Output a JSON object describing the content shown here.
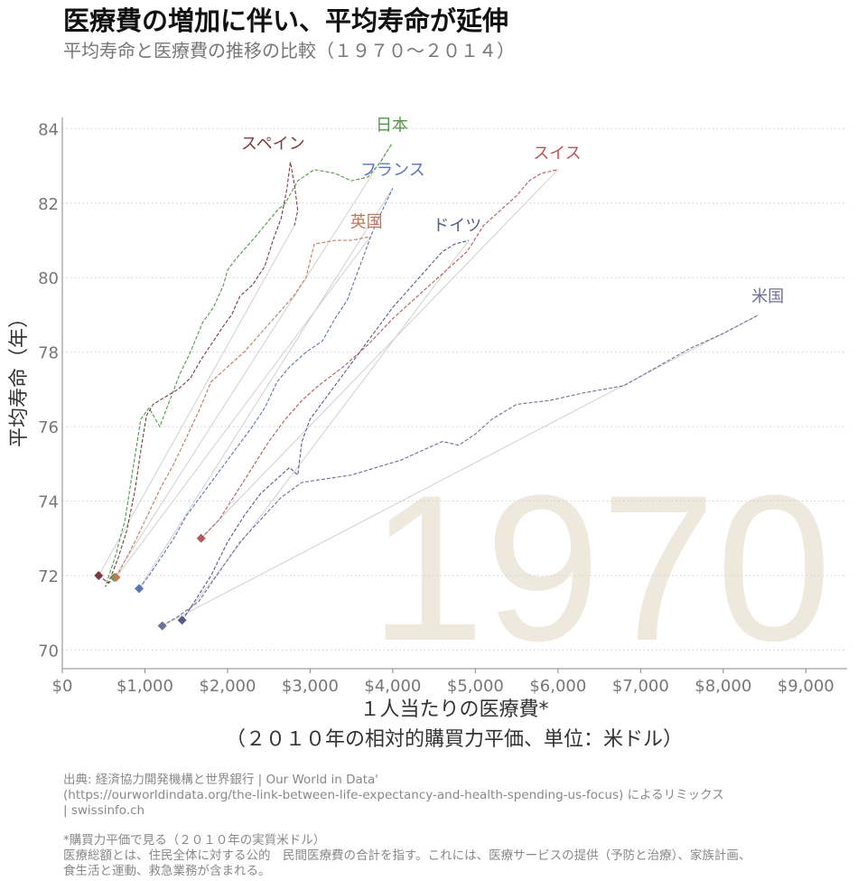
{
  "header": {
    "title": "医療費の増加に伴い、平均寿命が延伸",
    "subtitle": "平均寿命と医療費の推移の比較（１９７０～２０１４）"
  },
  "colors": {
    "grid": "#cfcfcf",
    "axis": "#888888",
    "year_watermark": "#efe8dd",
    "trend_line": "#d0d0d0"
  },
  "chart_data": {
    "type": "line",
    "year_label": "1970",
    "xlabel": "１人当たりの医療費*",
    "xlabel_line2": "（２０１０年の相対的購買力平価、単位：米ドル）",
    "ylabel": "平均寿命（年）",
    "xlim": [
      0,
      9500
    ],
    "ylim": [
      69.5,
      84.3
    ],
    "x_ticks": [
      0,
      1000,
      2000,
      3000,
      4000,
      5000,
      6000,
      7000,
      8000,
      9000
    ],
    "x_tick_labels": [
      "$0",
      "$1,000",
      "$2,000",
      "$3,000",
      "$4,000",
      "$5,000",
      "$6,000",
      "$7,000",
      "$8,000",
      "$9,000"
    ],
    "y_ticks": [
      70,
      72,
      74,
      76,
      78,
      80,
      82,
      84
    ],
    "y_tick_labels": [
      "70",
      "72",
      "74",
      "76",
      "78",
      "80",
      "82",
      "84"
    ],
    "grid": "horizontal dotted",
    "series": [
      {
        "name": "日本",
        "color": "#4f9a45",
        "start": [
          630,
          71.95
        ],
        "end": [
          3990,
          83.6
        ],
        "label_at": [
          3990,
          83.95
        ],
        "path": [
          [
            630,
            71.95
          ],
          [
            520,
            71.7
          ],
          [
            640,
            72.5
          ],
          [
            760,
            73.5
          ],
          [
            850,
            74.8
          ],
          [
            950,
            76.2
          ],
          [
            1050,
            76.5
          ],
          [
            1180,
            76.0
          ],
          [
            1300,
            76.7
          ],
          [
            1420,
            77.4
          ],
          [
            1550,
            78.0
          ],
          [
            1700,
            78.8
          ],
          [
            1830,
            79.2
          ],
          [
            1950,
            79.8
          ],
          [
            2000,
            80.2
          ],
          [
            2100,
            80.5
          ],
          [
            2300,
            81.0
          ],
          [
            2450,
            81.4
          ],
          [
            2600,
            81.8
          ],
          [
            2700,
            82.0
          ],
          [
            2850,
            82.6
          ],
          [
            3050,
            82.9
          ],
          [
            3300,
            82.8
          ],
          [
            3500,
            82.6
          ],
          [
            3700,
            82.7
          ],
          [
            3850,
            83.1
          ],
          [
            3990,
            83.6
          ]
        ]
      },
      {
        "name": "スペイン",
        "color": "#7a3c3c",
        "start": [
          440,
          72.0
        ],
        "end": [
          2810,
          81.4
        ],
        "label_at": [
          2550,
          83.45
        ],
        "path": [
          [
            440,
            72.0
          ],
          [
            560,
            71.8
          ],
          [
            680,
            72.5
          ],
          [
            780,
            73.2
          ],
          [
            880,
            74.3
          ],
          [
            960,
            75.5
          ],
          [
            1020,
            76.3
          ],
          [
            1100,
            76.6
          ],
          [
            1250,
            76.8
          ],
          [
            1400,
            77.0
          ],
          [
            1550,
            77.3
          ],
          [
            1680,
            77.8
          ],
          [
            1800,
            78.2
          ],
          [
            1950,
            78.7
          ],
          [
            2050,
            79.0
          ],
          [
            2150,
            79.5
          ],
          [
            2300,
            79.8
          ],
          [
            2450,
            80.3
          ],
          [
            2550,
            81.0
          ],
          [
            2650,
            81.6
          ],
          [
            2720,
            82.4
          ],
          [
            2760,
            83.1
          ],
          [
            2810,
            82.5
          ],
          [
            2850,
            81.8
          ],
          [
            2810,
            81.4
          ]
        ]
      },
      {
        "name": "フランス",
        "color": "#5b74b8",
        "start": [
          930,
          71.65
        ],
        "end": [
          4000,
          82.4
        ],
        "label_at": [
          4000,
          82.75
        ],
        "path": [
          [
            930,
            71.65
          ],
          [
            1050,
            72.0
          ],
          [
            1200,
            72.5
          ],
          [
            1350,
            73.0
          ],
          [
            1500,
            73.6
          ],
          [
            1700,
            74.2
          ],
          [
            1900,
            74.8
          ],
          [
            2100,
            75.4
          ],
          [
            2300,
            76.0
          ],
          [
            2450,
            76.5
          ],
          [
            2600,
            77.2
          ],
          [
            2750,
            77.6
          ],
          [
            2950,
            78.0
          ],
          [
            3150,
            78.3
          ],
          [
            3300,
            78.9
          ],
          [
            3450,
            79.4
          ],
          [
            3550,
            80.0
          ],
          [
            3650,
            80.6
          ],
          [
            3750,
            81.2
          ],
          [
            3850,
            81.7
          ],
          [
            4000,
            82.4
          ]
        ]
      },
      {
        "name": "英国",
        "color": "#c07a5a",
        "start": [
          650,
          71.95
        ],
        "end": [
          3730,
          81.1
        ],
        "label_at": [
          3680,
          81.35
        ],
        "path": [
          [
            650,
            71.95
          ],
          [
            760,
            72.4
          ],
          [
            900,
            73.0
          ],
          [
            1050,
            73.7
          ],
          [
            1200,
            74.4
          ],
          [
            1350,
            75.0
          ],
          [
            1500,
            75.7
          ],
          [
            1650,
            76.4
          ],
          [
            1800,
            77.2
          ],
          [
            2000,
            77.6
          ],
          [
            2200,
            78.0
          ],
          [
            2400,
            78.5
          ],
          [
            2600,
            79.0
          ],
          [
            2800,
            79.5
          ],
          [
            2950,
            80.0
          ],
          [
            3050,
            80.9
          ],
          [
            3300,
            81.0
          ],
          [
            3500,
            81.0
          ],
          [
            3730,
            81.1
          ]
        ]
      },
      {
        "name": "ドイツ",
        "color": "#555a8a",
        "start": [
          1450,
          70.8
        ],
        "end": [
          4920,
          81.0
        ],
        "label_at": [
          4780,
          81.25
        ],
        "path": [
          [
            1450,
            70.8
          ],
          [
            1600,
            71.3
          ],
          [
            1800,
            72.0
          ],
          [
            2000,
            72.9
          ],
          [
            2200,
            73.6
          ],
          [
            2400,
            74.2
          ],
          [
            2600,
            74.6
          ],
          [
            2750,
            74.9
          ],
          [
            2850,
            74.7
          ],
          [
            2900,
            75.6
          ],
          [
            3000,
            76.2
          ],
          [
            3200,
            76.8
          ],
          [
            3400,
            77.4
          ],
          [
            3600,
            78.0
          ],
          [
            3800,
            78.6
          ],
          [
            4000,
            79.2
          ],
          [
            4200,
            79.7
          ],
          [
            4400,
            80.2
          ],
          [
            4600,
            80.7
          ],
          [
            4750,
            80.9
          ],
          [
            4920,
            81.0
          ]
        ]
      },
      {
        "name": "スイス",
        "color": "#b85858",
        "start": [
          1680,
          73.0
        ],
        "end": [
          6000,
          82.9
        ],
        "label_at": [
          5990,
          83.2
        ],
        "path": [
          [
            1680,
            73.0
          ],
          [
            1900,
            73.5
          ],
          [
            2100,
            74.2
          ],
          [
            2300,
            74.9
          ],
          [
            2500,
            75.6
          ],
          [
            2700,
            76.2
          ],
          [
            2900,
            76.7
          ],
          [
            3100,
            77.1
          ],
          [
            3400,
            77.6
          ],
          [
            3700,
            78.2
          ],
          [
            4000,
            78.9
          ],
          [
            4300,
            79.5
          ],
          [
            4600,
            80.1
          ],
          [
            4900,
            80.7
          ],
          [
            5100,
            81.4
          ],
          [
            5300,
            81.8
          ],
          [
            5500,
            82.2
          ],
          [
            5650,
            82.6
          ],
          [
            5800,
            82.8
          ],
          [
            6000,
            82.9
          ]
        ]
      },
      {
        "name": "米国",
        "color": "#6e6e9a",
        "start": [
          1210,
          70.65
        ],
        "end": [
          8430,
          79.0
        ],
        "label_at": [
          8540,
          79.35
        ],
        "path": [
          [
            1210,
            70.65
          ],
          [
            1400,
            70.9
          ],
          [
            1650,
            71.3
          ],
          [
            1900,
            72.1
          ],
          [
            2150,
            72.9
          ],
          [
            2400,
            73.5
          ],
          [
            2650,
            74.1
          ],
          [
            2900,
            74.5
          ],
          [
            3200,
            74.6
          ],
          [
            3500,
            74.7
          ],
          [
            3800,
            74.9
          ],
          [
            4100,
            75.1
          ],
          [
            4400,
            75.4
          ],
          [
            4600,
            75.6
          ],
          [
            4800,
            75.5
          ],
          [
            5000,
            75.8
          ],
          [
            5200,
            76.2
          ],
          [
            5500,
            76.6
          ],
          [
            5900,
            76.7
          ],
          [
            6300,
            76.9
          ],
          [
            6800,
            77.1
          ],
          [
            7200,
            77.6
          ],
          [
            7600,
            78.1
          ],
          [
            8000,
            78.5
          ],
          [
            8430,
            79.0
          ]
        ]
      }
    ]
  },
  "footer": {
    "source_line1": "出典: 経済協力開発機構と世界銀行 | Our World in Data'",
    "source_line2": "(https://ourworldindata.org/the-link-between-life-expectancy-and-health-spending-us-focus) によるリミックス",
    "source_line3": "| swissinfo.ch",
    "note_line1": "*購買力平価で見る（２０１０年の実質米ドル）",
    "note_line2": "医療総額とは、住民全体に対する公的　民間医療費の合計を指す。これには、医療サービスの提供（予防と治療）、家族計画、",
    "note_line3": "食生活と運動、救急業務が含まれる。"
  }
}
